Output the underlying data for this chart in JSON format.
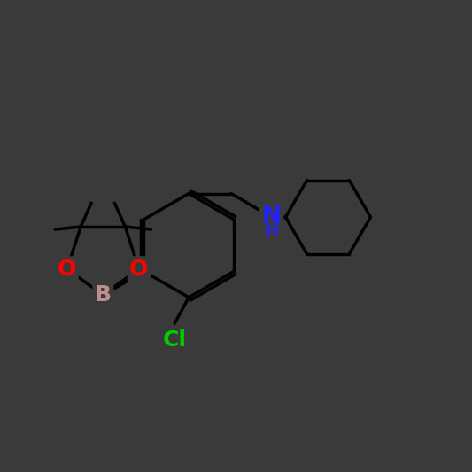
{
  "background_color": "#3a3a3a",
  "bond_color": "#000000",
  "line_width": 2.5,
  "atom_colors": {
    "B": "#bc8f8f",
    "O": "#ff0000",
    "N": "#2222ff",
    "Cl": "#00cc00",
    "C": "#000000"
  },
  "font_size": 18,
  "font_weight": "bold"
}
